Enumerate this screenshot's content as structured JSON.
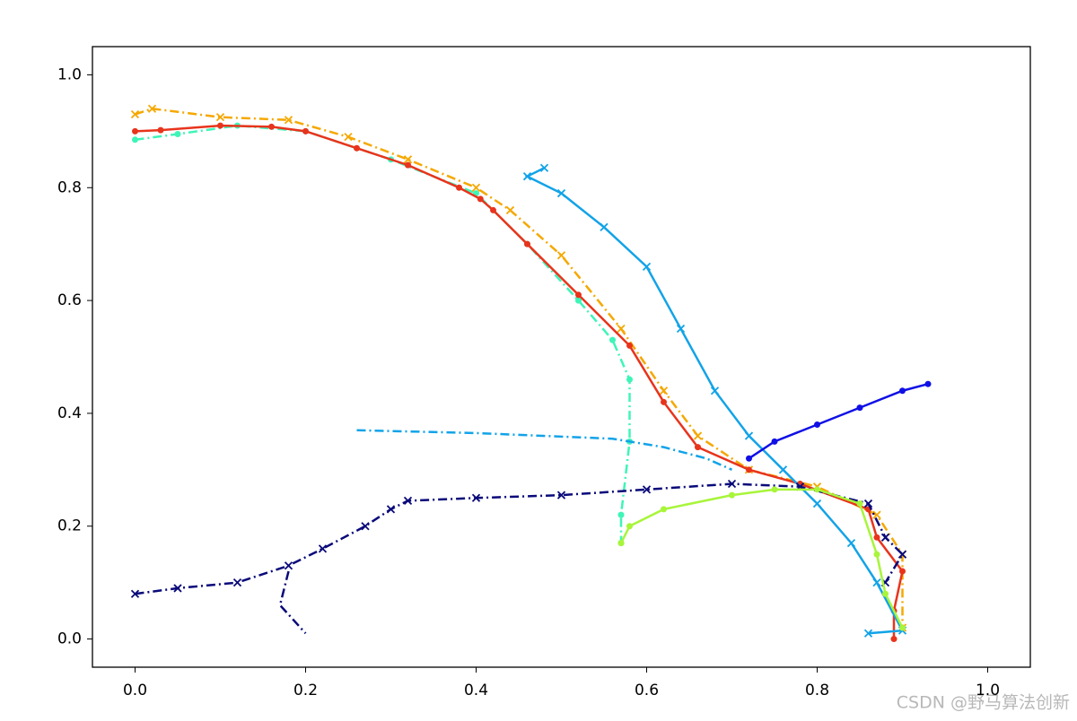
{
  "chart_data": {
    "type": "line",
    "xlim": [
      -0.05,
      1.05
    ],
    "ylim": [
      -0.05,
      1.05
    ],
    "xticks": [
      {
        "value": 0,
        "label": "0.0"
      },
      0.2,
      0.4,
      0.6,
      0.8,
      {
        "value": 1,
        "label": "1.0"
      }
    ],
    "yticks": [
      {
        "value": 0,
        "label": "0.0"
      },
      0.2,
      0.4,
      0.6,
      0.8,
      {
        "value": 1,
        "label": "1.0"
      }
    ],
    "annotation": "CSDN @野马算法创新",
    "series": [
      {
        "color": "#3ef5b8",
        "marker": "o",
        "linestyle": "-.",
        "x": [
          0,
          0.05,
          0.12,
          0.2,
          0.3,
          0.4,
          0.46,
          0.52,
          0.56,
          0.58,
          0.58,
          0.57,
          0.57
        ],
        "values": [
          0.885,
          0.895,
          0.91,
          0.9,
          0.85,
          0.79,
          0.7,
          0.6,
          0.53,
          0.46,
          0.35,
          0.22,
          0.17
        ]
      },
      {
        "color": "#f5a800",
        "marker": "x",
        "linestyle": "-.",
        "x": [
          0,
          0.02,
          0.1,
          0.18,
          0.25,
          0.32,
          0.4,
          0.44,
          0.5,
          0.57,
          0.62,
          0.66,
          0.72,
          0.8,
          0.87,
          0.9,
          0.9
        ],
        "values": [
          0.93,
          0.94,
          0.925,
          0.92,
          0.89,
          0.85,
          0.8,
          0.76,
          0.68,
          0.55,
          0.44,
          0.36,
          0.3,
          0.27,
          0.22,
          0.15,
          0.02
        ]
      },
      {
        "color": "#e8341c",
        "marker": "o",
        "linestyle": "-",
        "x": [
          0,
          0.03,
          0.1,
          0.16,
          0.2,
          0.26,
          0.32,
          0.38,
          0.405,
          0.42,
          0.46,
          0.52,
          0.58,
          0.62,
          0.66,
          0.72,
          0.78,
          0.86,
          0.87,
          0.9,
          0.89,
          0.89
        ],
        "values": [
          0.9,
          0.902,
          0.91,
          0.908,
          0.9,
          0.87,
          0.84,
          0.8,
          0.78,
          0.76,
          0.7,
          0.61,
          0.52,
          0.42,
          0.34,
          0.3,
          0.275,
          0.23,
          0.18,
          0.12,
          0.05,
          0
        ]
      },
      {
        "color": "#12a3e8",
        "marker": "x",
        "linestyle": "-",
        "x": [
          0.48,
          0.46,
          0.5,
          0.55,
          0.6,
          0.64,
          0.68,
          0.72,
          0.76,
          0.8,
          0.84,
          0.87,
          0.9,
          0.86
        ],
        "values": [
          0.835,
          0.82,
          0.79,
          0.73,
          0.66,
          0.55,
          0.44,
          0.36,
          0.3,
          0.24,
          0.17,
          0.1,
          0.015,
          0.01
        ]
      },
      {
        "color": "#12a3e8",
        "marker": "",
        "linestyle": "-.",
        "x": [
          0.26,
          0.4,
          0.56,
          0.62,
          0.67,
          0.7
        ],
        "values": [
          0.37,
          0.365,
          0.355,
          0.34,
          0.32,
          0.3
        ]
      },
      {
        "color": "#0a0a7a",
        "marker": "x",
        "linestyle": "-.",
        "x": [
          0,
          0.05,
          0.12,
          0.18,
          0.22,
          0.27,
          0.3,
          0.32,
          0.4,
          0.5,
          0.6,
          0.7,
          0.78,
          0.86,
          0.88,
          0.9,
          0.88
        ],
        "values": [
          0.08,
          0.09,
          0.1,
          0.13,
          0.16,
          0.2,
          0.23,
          0.245,
          0.25,
          0.255,
          0.265,
          0.275,
          0.27,
          0.24,
          0.18,
          0.15,
          0.1
        ]
      },
      {
        "color": "#0a0a7a",
        "marker": "",
        "linestyle": "-.",
        "x": [
          0.18,
          0.17,
          0.2
        ],
        "values": [
          0.12,
          0.06,
          0.01
        ]
      },
      {
        "color": "#1010e6",
        "marker": "o",
        "linestyle": "-",
        "x": [
          0.72,
          0.75,
          0.8,
          0.85,
          0.9,
          0.93
        ],
        "values": [
          0.32,
          0.35,
          0.38,
          0.41,
          0.44,
          0.452
        ]
      },
      {
        "color": "#a8f53a",
        "marker": "o",
        "linestyle": "-",
        "x": [
          0.57,
          0.58,
          0.62,
          0.7,
          0.75,
          0.8,
          0.85,
          0.87,
          0.88,
          0.9
        ],
        "values": [
          0.17,
          0.2,
          0.23,
          0.255,
          0.265,
          0.265,
          0.24,
          0.15,
          0.08,
          0.02
        ]
      }
    ]
  }
}
